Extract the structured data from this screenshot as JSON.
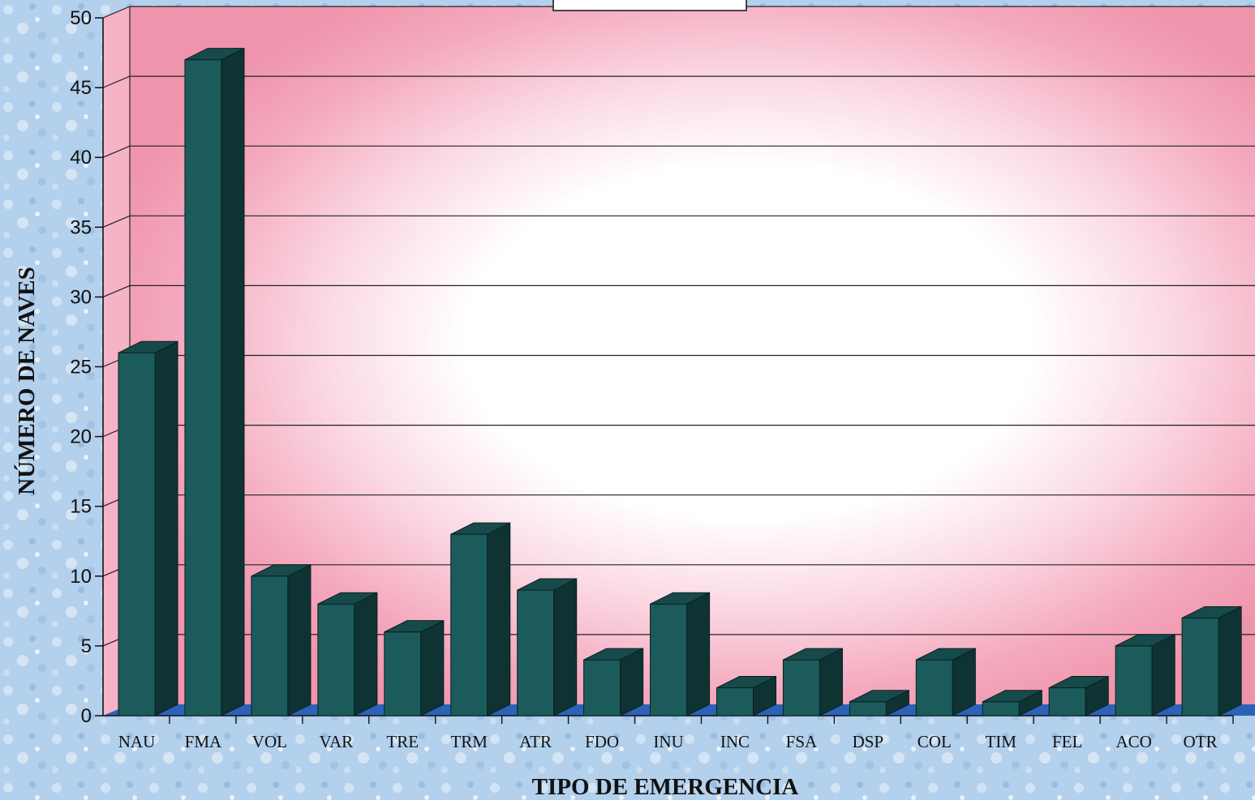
{
  "chart_data": {
    "type": "bar",
    "title": "",
    "xlabel": "TIPO DE EMERGENCIA",
    "ylabel": "NÚMERO DE NAVES",
    "ylim": [
      0,
      50
    ],
    "yticks": [
      0,
      5,
      10,
      15,
      20,
      25,
      30,
      35,
      40,
      45,
      50
    ],
    "grid": true,
    "categories": [
      "NAU",
      "FMA",
      "VOL",
      "VAR",
      "TRE",
      "TRM",
      "ATR",
      "FDO",
      "INU",
      "INC",
      "FSA",
      "DSP",
      "COL",
      "TIM",
      "FEL",
      "ACO",
      "OTR"
    ],
    "values": [
      26,
      47,
      10,
      8,
      6,
      13,
      9,
      4,
      8,
      2,
      4,
      1,
      4,
      1,
      2,
      5,
      7
    ],
    "colors": {
      "bar_front": "#1b5b5b",
      "bar_side": "#0f3333",
      "bar_top": "#174a4a",
      "floor": "#2c62b8",
      "wall_pink": "#f2a0b6",
      "background": "#a9c8e8"
    }
  }
}
